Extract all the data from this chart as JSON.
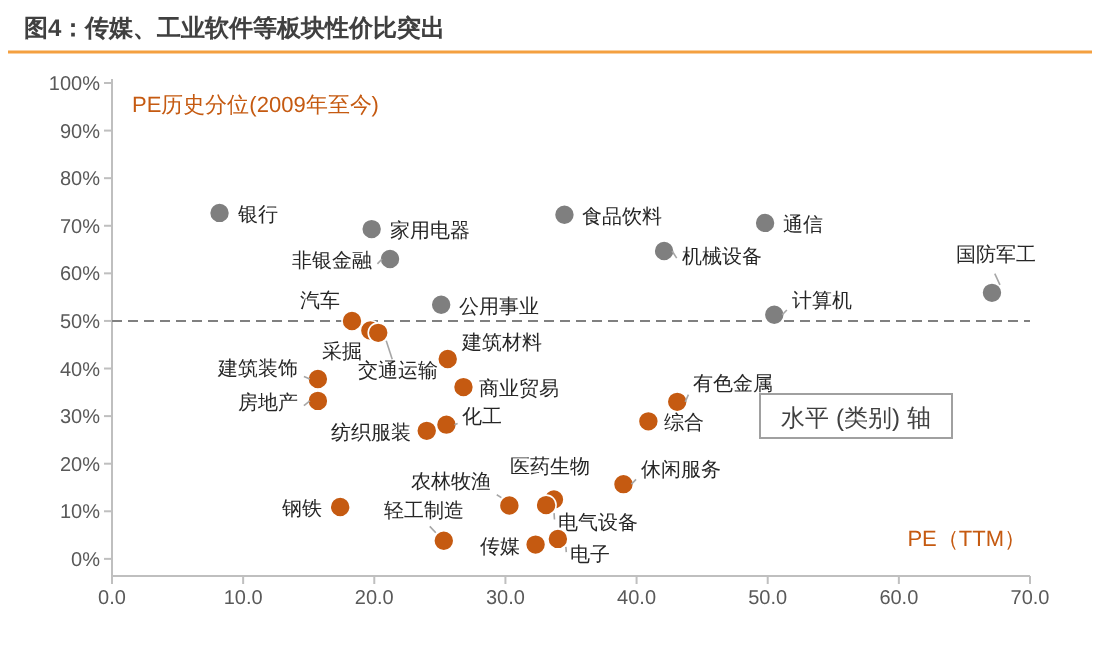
{
  "chart_data": {
    "type": "scatter",
    "title": "图4：传媒、工业软件等板块性价比突出",
    "ylabel": "PE历史分位(2009年至今)",
    "xlabel": "PE（TTM）",
    "series": [
      {
        "color": "#7f7f7f",
        "x": [
          8.2,
          19.8,
          21.2,
          25.1,
          34.5,
          42.1,
          49.8,
          50.5,
          67.1
        ],
        "values": [
          72.7,
          69.3,
          63,
          53.4,
          72.3,
          64.7,
          70.6,
          51.3,
          55.9
        ]
      },
      {
        "color": "#c55a11",
        "x": [
          18.3,
          19.7,
          20.3,
          25.6,
          26.8,
          15.7,
          15.7,
          24.0,
          25.5,
          40.9,
          43.1,
          39.0,
          30.3,
          33.7,
          33.1,
          17.4,
          25.3,
          32.3,
          34.0
        ],
        "values": [
          50,
          48,
          47.5,
          42,
          36.1,
          37.8,
          33.2,
          26.9,
          28.2,
          28.9,
          33.0,
          15.7,
          11.2,
          12.5,
          11.3,
          10.9,
          3.8,
          3.0,
          4.2
        ]
      }
    ],
    "annotations": [
      {
        "text": "银行",
        "x": 8.2,
        "y": 72.7
      },
      {
        "text": "家用电器",
        "x": 19.8,
        "y": 69.3
      },
      {
        "text": "非银金融",
        "x": 21.2,
        "y": 63
      },
      {
        "text": "公用事业",
        "x": 25.1,
        "y": 53.4
      },
      {
        "text": "食品饮料",
        "x": 34.5,
        "y": 72.3
      },
      {
        "text": "机械设备",
        "x": 42.1,
        "y": 64.7
      },
      {
        "text": "通信",
        "x": 49.8,
        "y": 70.6
      },
      {
        "text": "计算机",
        "x": 50.5,
        "y": 51.3
      },
      {
        "text": "国防军工",
        "x": 67.1,
        "y": 55.9
      },
      {
        "text": "汽车",
        "x": 18.3,
        "y": 50
      },
      {
        "text": "采掘",
        "x": 19.7,
        "y": 48
      },
      {
        "text": "交通运输",
        "x": 20.3,
        "y": 47.5
      },
      {
        "text": "建筑材料",
        "x": 25.6,
        "y": 42
      },
      {
        "text": "商业贸易",
        "x": 26.8,
        "y": 36.1
      },
      {
        "text": "建筑装饰",
        "x": 15.7,
        "y": 37.8
      },
      {
        "text": "房地产",
        "x": 15.7,
        "y": 33.2
      },
      {
        "text": "纺织服装",
        "x": 24.0,
        "y": 26.9
      },
      {
        "text": "化工",
        "x": 25.5,
        "y": 28.2
      },
      {
        "text": "综合",
        "x": 40.9,
        "y": 28.9
      },
      {
        "text": "有色金属",
        "x": 43.1,
        "y": 33.0
      },
      {
        "text": "休闲服务",
        "x": 39.0,
        "y": 15.7
      },
      {
        "text": "农林牧渔",
        "x": 30.3,
        "y": 11.2
      },
      {
        "text": "医药生物",
        "x": 33.7,
        "y": 12.5
      },
      {
        "text": "电气设备",
        "x": 33.1,
        "y": 11.3
      },
      {
        "text": "钢铁",
        "x": 17.4,
        "y": 10.9
      },
      {
        "text": "轻工制造",
        "x": 25.3,
        "y": 3.8
      },
      {
        "text": "传媒",
        "x": 32.3,
        "y": 3.0
      },
      {
        "text": "电子",
        "x": 34.0,
        "y": 4.2
      },
      "水平 (类别) 轴"
    ],
    "ref_lines": [
      {
        "axis": "y",
        "value": 50,
        "color": "#808080",
        "line_style": "dashed"
      }
    ],
    "xlim": [
      0,
      70
    ],
    "xticks": [
      {
        "value": 0,
        "label": "0.0"
      },
      {
        "value": 10,
        "label": "10.0"
      },
      {
        "value": 20,
        "label": "20.0"
      },
      {
        "value": 30,
        "label": "30.0"
      },
      {
        "value": 40,
        "label": "40.0"
      },
      {
        "value": 50,
        "label": "50.0"
      },
      {
        "value": 60,
        "label": "60.0"
      },
      {
        "value": 70,
        "label": "70.0"
      }
    ],
    "ylim": [
      -3.6,
      100
    ],
    "yticks": [
      {
        "value": 0,
        "label": "0%"
      },
      {
        "value": 10,
        "label": "10%"
      },
      {
        "value": 20,
        "label": "20%"
      },
      {
        "value": 30,
        "label": "30%"
      },
      {
        "value": 40,
        "label": "40%"
      },
      {
        "value": 50,
        "label": "50%"
      },
      {
        "value": 60,
        "label": "60%"
      },
      {
        "value": 70,
        "label": "70%"
      },
      {
        "value": 80,
        "label": "80%"
      },
      {
        "value": 90,
        "label": "90%"
      },
      {
        "value": 100,
        "label": "100%"
      }
    ],
    "grid": false,
    "marker": "circle"
  }
}
